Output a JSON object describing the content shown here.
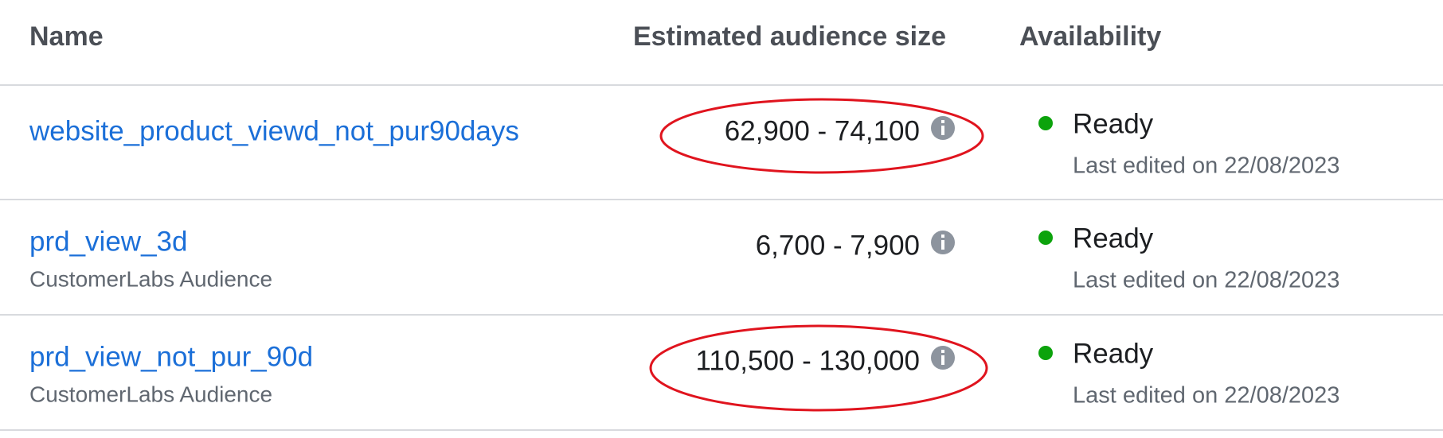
{
  "header": {
    "name": "Name",
    "size": "Estimated audience size",
    "availability": "Availability"
  },
  "rows": [
    {
      "name": "website_product_viewd_not_pur90days",
      "size": "62,900 - 74,100",
      "status": "Ready",
      "edited": "Last edited on 22/08/2023"
    },
    {
      "name": "prd_view_3d",
      "source": "CustomerLabs Audience",
      "size": "6,700 - 7,900",
      "status": "Ready",
      "edited": "Last edited on 22/08/2023"
    },
    {
      "name": "prd_view_not_pur_90d",
      "source": "CustomerLabs Audience",
      "size": "110,500 - 130,000",
      "status": "Ready",
      "edited": "Last edited on 22/08/2023"
    }
  ]
}
